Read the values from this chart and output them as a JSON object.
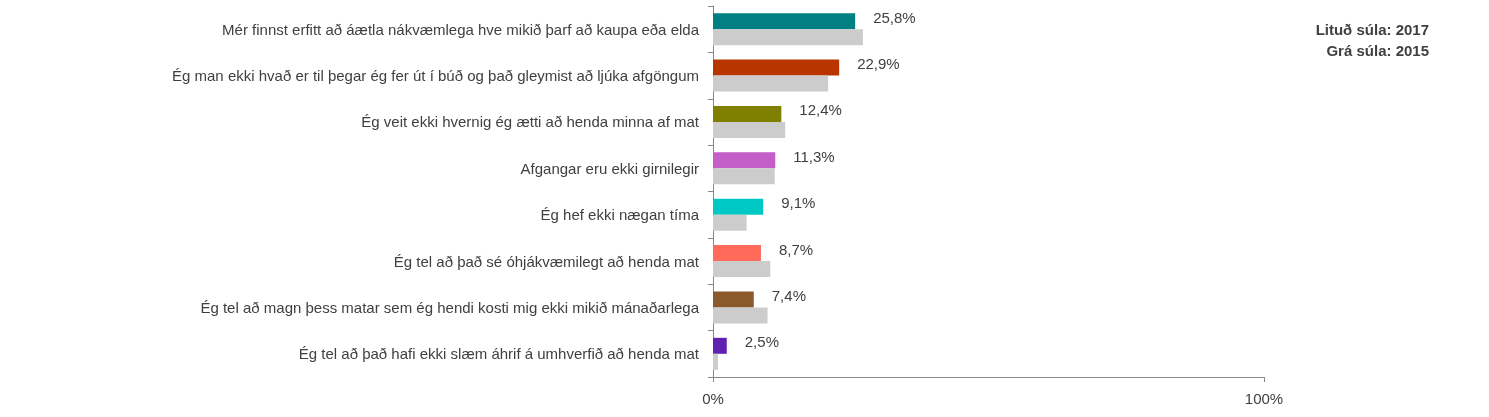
{
  "chart_data": {
    "type": "bar",
    "orientation": "horizontal",
    "categories": [
      "Mér finnst erfitt að áætla nákvæmlega hve mikið þarf að kaupa eða elda",
      "Ég man ekki hvað er til þegar ég fer út í búð og það gleymist að ljúka afgöngum",
      "Ég veit ekki hvernig ég ætti að henda minna af mat",
      "Afgangar eru ekki girnilegir",
      "Ég hef ekki nægan tíma",
      "Ég tel að það sé óhjákvæmilegt að henda mat",
      "Ég tel að magn þess matar sem ég hendi kosti mig ekki mikið mánaðarlega",
      "Ég tel að það hafi ekki slæm áhrif á umhverfið að henda mat"
    ],
    "series": [
      {
        "colors": [
          "#008080",
          "#b83500",
          "#808000",
          "#c45ec9",
          "#00c8c4",
          "#ff6a5a",
          "#8b5a2b",
          "#6020b0"
        ],
        "values": [
          25.8,
          22.9,
          12.4,
          11.3,
          9.1,
          8.7,
          7.4,
          2.5
        ],
        "value_labels": [
          "25,8%",
          "22,9%",
          "12,4%",
          "11,3%",
          "9,1%",
          "8,7%",
          "7,4%",
          "2,5%"
        ]
      },
      {
        "color": "#cccccc",
        "values": [
          27.2,
          20.9,
          13.1,
          11.2,
          6.1,
          10.4,
          9.9,
          0.9
        ]
      }
    ],
    "xlim": [
      0,
      100
    ],
    "xticks": [
      {
        "value": 0,
        "label": "0%"
      },
      {
        "value": 100,
        "label": "100%"
      }
    ],
    "grid": false,
    "annotations": [
      "Lituð súla: 2017",
      "Grá súla: 2015"
    ]
  }
}
